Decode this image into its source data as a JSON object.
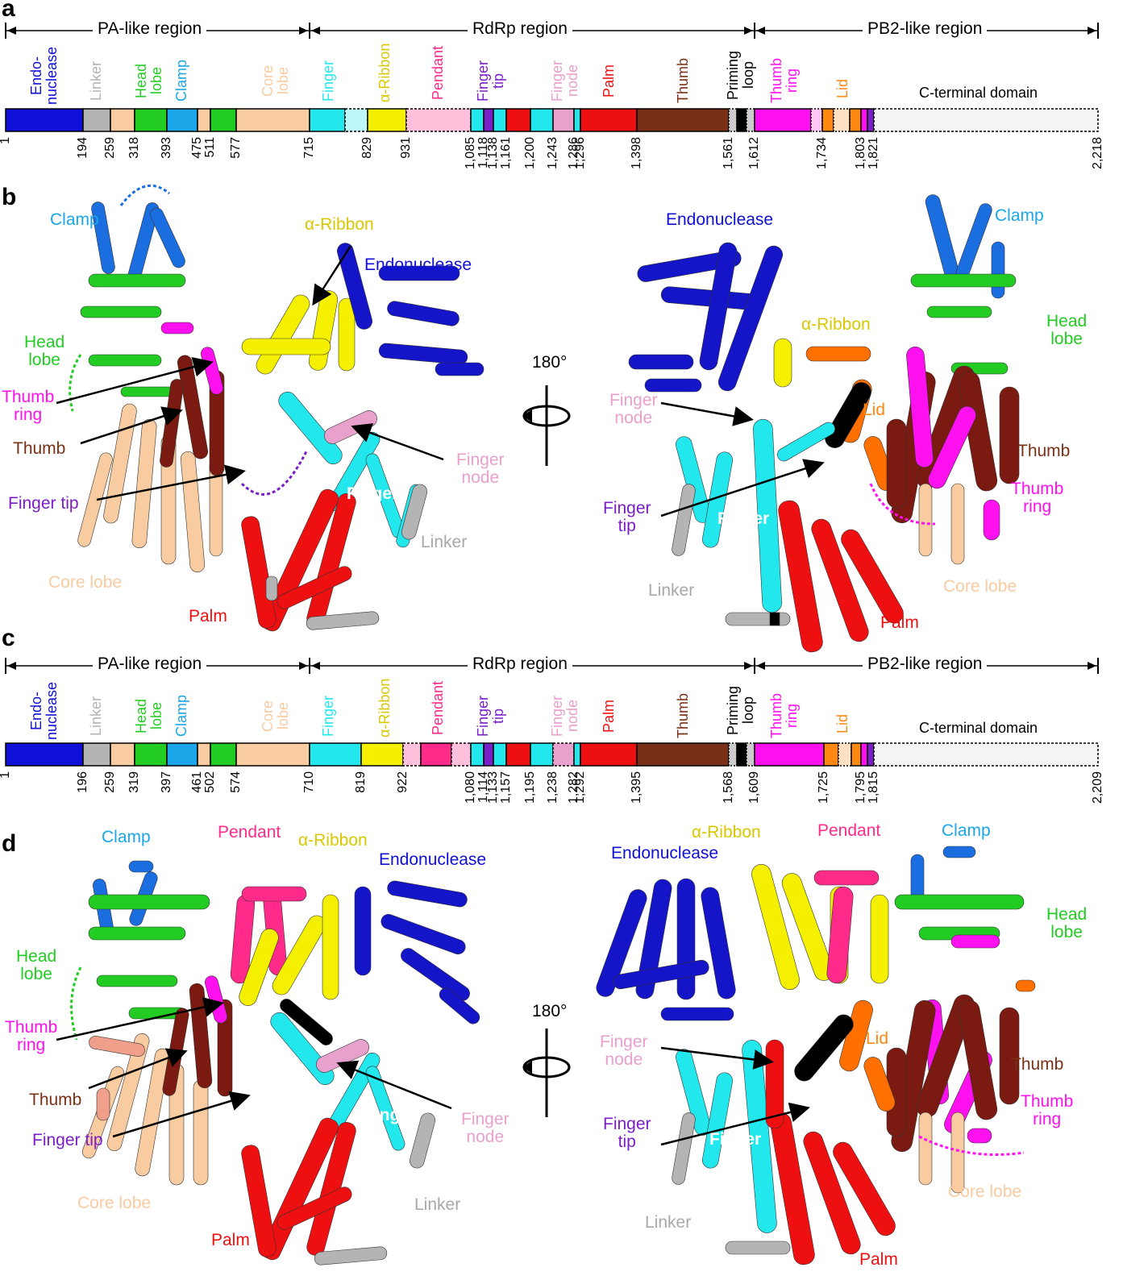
{
  "panels": {
    "a": "a",
    "b": "b",
    "c": "c",
    "d": "d"
  },
  "colors": {
    "endonuclease": "#1010d8",
    "linker": "#b4b4b4",
    "core": "#f8cba0",
    "head": "#22cc22",
    "clamp": "#1aa6e8",
    "finger": "#22e8ee",
    "ribbon": "#f5f000",
    "pendant": "#ff2a8a",
    "pendant_light": "#ffc0dc",
    "fingertip": "#7a1ec8",
    "palm": "#ee1010",
    "fingernode": "#e8a0cc",
    "thumb": "#7a3016",
    "priming": "#000000",
    "thumbring": "#ff10ee",
    "lid": "#ff8810",
    "cterm": "#f4f4f4"
  },
  "bar_a": {
    "regions": [
      "PA-like region",
      "RdRp region",
      "PB2-like region"
    ],
    "domain_labels": {
      "endonuclease": "Endo-\nnuclease",
      "linker": "Linker",
      "head": "Head\nlobe",
      "clamp": "Clamp",
      "core": "Core\nlobe",
      "finger": "Finger",
      "ribbon": "α-Ribbon",
      "pendant": "Pendant",
      "fingertip": "Finger\ntip",
      "fingernode": "Finger\nnode",
      "palm": "Palm",
      "thumb": "Thumb",
      "priming": "Priming\nloop",
      "thumbring": "Thumb\nring",
      "lid": "Lid",
      "cterm": "C-terminal domain"
    },
    "ticks": [
      "1",
      "194",
      "259",
      "318",
      "393",
      "475",
      "511",
      "577",
      "715",
      "829",
      "931",
      "1,085",
      "1,118",
      "1,138",
      "1,161",
      "1,200",
      "1,243",
      "1,286",
      "1,296",
      "1,398",
      "1,561",
      "1,612",
      "1,734",
      "1,803",
      "1,821",
      "2,218"
    ]
  },
  "bar_c": {
    "regions": [
      "PA-like region",
      "RdRp region",
      "PB2-like region"
    ],
    "ticks": [
      "1",
      "196",
      "259",
      "319",
      "397",
      "461",
      "502",
      "574",
      "710",
      "819",
      "922",
      "1,080",
      "1,114",
      "1,133",
      "1,157",
      "1,195",
      "1,238",
      "1,282",
      "1,292",
      "1,395",
      "1,568",
      "1,609",
      "1,725",
      "1,795",
      "1,815",
      "2,209"
    ]
  },
  "panel_b": {
    "rotation": "180°",
    "left": {
      "clamp": "Clamp",
      "ribbon": "α-Ribbon",
      "endonuclease": "Endonuclease",
      "head": "Head\nlobe",
      "thumbring": "Thumb\nring",
      "thumb": "Thumb",
      "fingertip": "Finger tip",
      "fingernode": "Finger\nnode",
      "finger": "Finger",
      "linker": "Linker",
      "core": "Core lobe",
      "palm": "Palm"
    },
    "right": {
      "endonuclease": "Endonuclease",
      "clamp": "Clamp",
      "ribbon": "α-Ribbon",
      "head": "Head\nlobe",
      "fingernode": "Finger\nnode",
      "lid": "Lid",
      "thumb": "Thumb",
      "thumbring": "Thumb\nring",
      "fingertip": "Finger\ntip",
      "finger": "Finger",
      "linker": "Linker",
      "core": "Core lobe",
      "palm": "Palm"
    }
  },
  "panel_d": {
    "rotation": "180°",
    "left": {
      "clamp": "Clamp",
      "pendant": "Pendant",
      "ribbon": "α-Ribbon",
      "endonuclease": "Endonuclease",
      "head": "Head\nlobe",
      "thumbring": "Thumb\nring",
      "thumb": "Thumb",
      "fingertip": "Finger tip",
      "fingernode": "Finger\nnode",
      "finger": "Finger",
      "linker": "Linker",
      "core": "Core lobe",
      "palm": "Palm"
    },
    "right": {
      "ribbon": "α-Ribbon",
      "pendant": "Pendant",
      "clamp": "Clamp",
      "endonuclease": "Endonuclease",
      "head": "Head\nlobe",
      "fingernode": "Finger\nnode",
      "lid": "Lid",
      "thumb": "Thumb",
      "thumbring": "Thumb\nring",
      "fingertip": "Finger\ntip",
      "finger": "Finger",
      "linker": "Linker",
      "core": "Core lobe",
      "palm": "Palm"
    }
  }
}
